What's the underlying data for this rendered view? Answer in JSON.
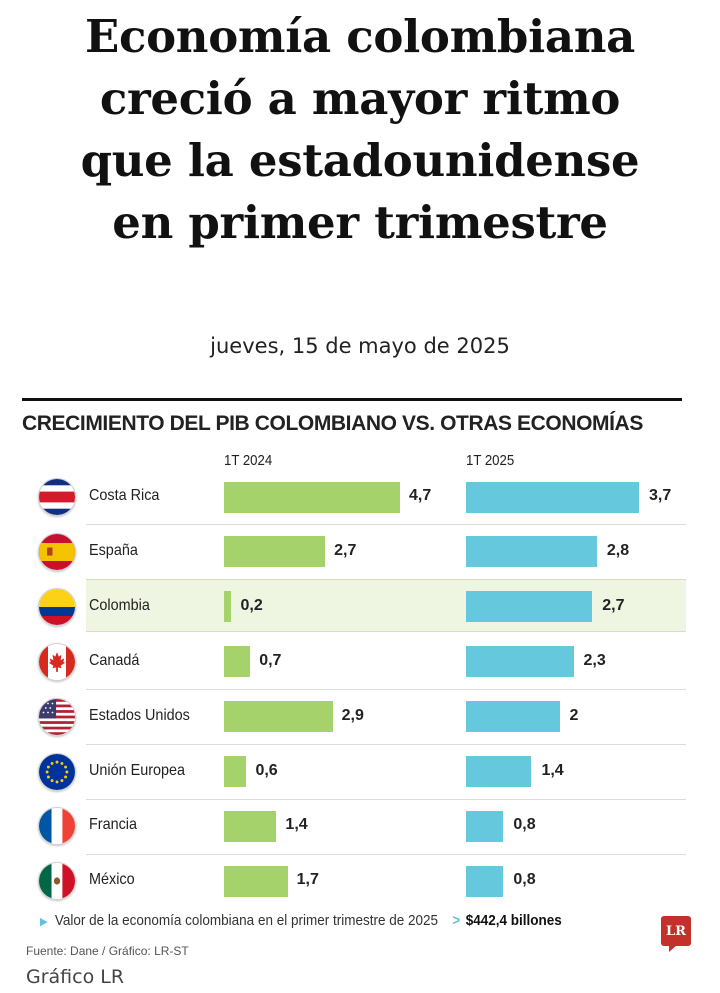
{
  "headline": {
    "lines": [
      "Economía colombiana",
      "creció a mayor ritmo",
      "que la estadounidense",
      "en primer trimestre"
    ]
  },
  "date": "jueves, 15 de mayo de 2025",
  "chart_data": {
    "type": "bar",
    "title": "CRECIMIENTO DEL PIB COLOMBIANO VS. OTRAS ECONOMÍAS",
    "orientation": "horizontal",
    "categories": [
      "Costa Rica",
      "España",
      "Colombia",
      "Canadá",
      "Estados Unidos",
      "Unión Europea",
      "Francia",
      "México"
    ],
    "series": [
      {
        "name": "1T 2024",
        "values": [
          4.7,
          2.7,
          0.2,
          0.7,
          2.9,
          0.6,
          1.4,
          1.7
        ],
        "labels": [
          "4,7",
          "2,7",
          "0,2",
          "0,7",
          "2,9",
          "0,6",
          "1,4",
          "1,7"
        ],
        "color": "#a6d26b"
      },
      {
        "name": "1T 2025",
        "values": [
          3.7,
          2.8,
          2.7,
          2.3,
          2.0,
          1.4,
          0.8,
          0.8
        ],
        "labels": [
          "3,7",
          "2,8",
          "2,7",
          "2,3",
          "2",
          "1,4",
          "0,8",
          "0,8"
        ],
        "color": "#66c8dc"
      }
    ],
    "highlight_category": "Colombia",
    "highlight_color": "#eef5e1",
    "flag_icons": [
      "costa-rica-flag-icon",
      "spain-flag-icon",
      "colombia-flag-icon",
      "canada-flag-icon",
      "usa-flag-icon",
      "eu-flag-icon",
      "france-flag-icon",
      "mexico-flag-icon"
    ]
  },
  "note": {
    "text": "Valor de la economía colombiana en el primer trimestre de 2025",
    "chevron": ">",
    "amount": "$442,4 billones"
  },
  "source": "Fuente: Dane / Gráfico: LR-ST",
  "credit": "Gráfico LR",
  "logo": "LR"
}
